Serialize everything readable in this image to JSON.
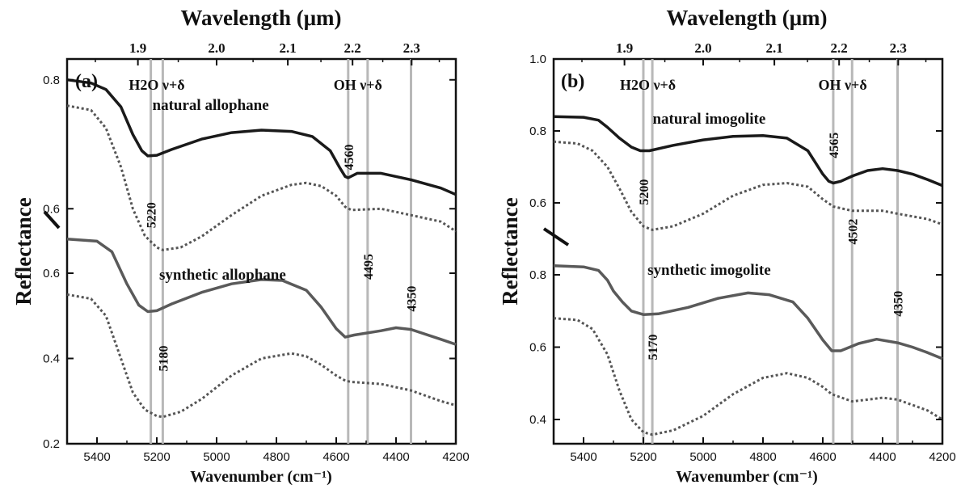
{
  "figure": {
    "top_axis_label": "Wavelength (μm)",
    "bottom_axis_label": "Wavenumber (cm⁻¹)",
    "y_axis_label": "Reflectance"
  },
  "chart_data": [
    {
      "type": "line",
      "panel_label": "(a)",
      "x_unit": "cm-1",
      "x_top_unit": "μm",
      "xlim": [
        5500,
        4200
      ],
      "x_ticks": [
        5400,
        5200,
        5000,
        4800,
        4600,
        4400,
        4200
      ],
      "x_top_ticks": [
        1.9,
        2.0,
        2.1,
        2.2,
        2.3
      ],
      "y_axis_break": true,
      "upper_segment": {
        "ylim": [
          0.5,
          0.9
        ],
        "ticks": [
          0.6,
          0.8
        ]
      },
      "lower_segment": {
        "ylim": [
          0.2,
          0.7
        ],
        "ticks": [
          0.2,
          0.4,
          0.6
        ]
      },
      "bands": [
        {
          "label": "H2O ν+δ",
          "lines": [
            5220,
            5180
          ]
        },
        {
          "label": "OH ν+δ",
          "lines": [
            4560,
            4495
          ]
        }
      ],
      "vertical_lines": [
        5220,
        5180,
        4560,
        4495,
        4350
      ],
      "line_labels": [
        {
          "text": "5220",
          "at": 5220,
          "segment": "upper",
          "y": 0.59
        },
        {
          "text": "5180",
          "at": 5180,
          "segment": "lower",
          "y": 0.4
        },
        {
          "text": "4560",
          "at": 4560,
          "segment": "upper",
          "y": 0.68
        },
        {
          "text": "4495",
          "at": 4495,
          "segment": "upper",
          "y": 0.51
        },
        {
          "text": "4350",
          "at": 4350,
          "segment": "lower",
          "y": 0.54
        }
      ],
      "annotations": [
        {
          "text": "natural allophane",
          "x": 5020,
          "segment": "upper",
          "y": 0.753
        },
        {
          "text": "synthetic allophane",
          "x": 4980,
          "segment": "lower",
          "y": 0.585
        }
      ],
      "series": [
        {
          "segment": "upper",
          "style": "solid",
          "color": "#1a1a1a",
          "x": [
            5500,
            5420,
            5370,
            5320,
            5280,
            5250,
            5230,
            5200,
            5150,
            5050,
            4950,
            4850,
            4750,
            4680,
            4620,
            4590,
            4570,
            4560,
            4530,
            4450,
            4350,
            4250,
            4200
          ],
          "y": [
            0.8,
            0.795,
            0.785,
            0.758,
            0.715,
            0.69,
            0.682,
            0.683,
            0.692,
            0.708,
            0.718,
            0.722,
            0.72,
            0.712,
            0.69,
            0.665,
            0.65,
            0.648,
            0.655,
            0.655,
            0.645,
            0.632,
            0.622
          ]
        },
        {
          "segment": "upper",
          "style": "dotted",
          "color": "#555555",
          "x": [
            5500,
            5420,
            5370,
            5320,
            5280,
            5240,
            5200,
            5180,
            5120,
            5050,
            4950,
            4850,
            4750,
            4700,
            4650,
            4600,
            4570,
            4550,
            4450,
            4350,
            4250,
            4200
          ],
          "y": [
            0.76,
            0.753,
            0.725,
            0.665,
            0.6,
            0.558,
            0.54,
            0.536,
            0.54,
            0.557,
            0.59,
            0.62,
            0.637,
            0.64,
            0.635,
            0.62,
            0.603,
            0.598,
            0.6,
            0.59,
            0.58,
            0.565
          ]
        },
        {
          "segment": "lower",
          "style": "solid",
          "color": "#5a5a5a",
          "x": [
            5500,
            5400,
            5350,
            5300,
            5260,
            5230,
            5200,
            5150,
            5050,
            4950,
            4850,
            4780,
            4700,
            4650,
            4600,
            4570,
            4540,
            4450,
            4400,
            4350,
            4250,
            4200
          ],
          "y": [
            0.68,
            0.675,
            0.65,
            0.575,
            0.525,
            0.51,
            0.512,
            0.528,
            0.555,
            0.575,
            0.585,
            0.583,
            0.56,
            0.52,
            0.47,
            0.45,
            0.455,
            0.465,
            0.472,
            0.468,
            0.445,
            0.433
          ]
        },
        {
          "segment": "lower",
          "style": "dotted",
          "color": "#555555",
          "x": [
            5500,
            5420,
            5370,
            5320,
            5280,
            5240,
            5200,
            5180,
            5120,
            5050,
            4950,
            4850,
            4750,
            4700,
            4650,
            4600,
            4570,
            4550,
            4450,
            4350,
            4250,
            4200
          ],
          "y": [
            0.55,
            0.54,
            0.5,
            0.4,
            0.32,
            0.28,
            0.265,
            0.263,
            0.275,
            0.305,
            0.36,
            0.4,
            0.412,
            0.405,
            0.385,
            0.36,
            0.348,
            0.345,
            0.34,
            0.325,
            0.3,
            0.29
          ]
        }
      ]
    },
    {
      "type": "line",
      "panel_label": "(b)",
      "x_unit": "cm-1",
      "x_top_unit": "μm",
      "xlim": [
        5500,
        4200
      ],
      "x_ticks": [
        5400,
        5200,
        5000,
        4800,
        4600,
        4400,
        4200
      ],
      "x_top_ticks": [
        1.9,
        2.0,
        2.1,
        2.2,
        2.3
      ],
      "y_axis_break": true,
      "upper_segment": {
        "ylim": [
          0.5,
          1.0
        ],
        "ticks": [
          0.6,
          0.8,
          1.0
        ]
      },
      "lower_segment": {
        "ylim": [
          0.3,
          0.9
        ],
        "ticks": [
          0.4,
          0.6,
          0.8
        ]
      },
      "bands": [
        {
          "label": "H2O ν+δ",
          "lines": [
            5200,
            5170
          ]
        },
        {
          "label": "OH ν+δ",
          "lines": [
            4565,
            4502
          ]
        }
      ],
      "vertical_lines": [
        5200,
        5170,
        4565,
        4502,
        4350
      ],
      "line_labels": [
        {
          "text": "5200",
          "at": 5200,
          "segment": "upper",
          "y": 0.63
        },
        {
          "text": "5170",
          "at": 5170,
          "segment": "lower",
          "y": 0.6
        },
        {
          "text": "4565",
          "at": 4565,
          "segment": "upper",
          "y": 0.76
        },
        {
          "text": "4502",
          "at": 4502,
          "segment": "upper",
          "y": 0.52
        },
        {
          "text": "4350",
          "at": 4350,
          "segment": "lower",
          "y": 0.72
        }
      ],
      "annotations": [
        {
          "text": "natural imogolite",
          "x": 4980,
          "segment": "upper",
          "y": 0.82
        },
        {
          "text": "synthetic imogolite",
          "x": 4980,
          "segment": "lower",
          "y": 0.8
        }
      ],
      "series": [
        {
          "segment": "upper",
          "style": "solid",
          "color": "#1a1a1a",
          "x": [
            5500,
            5400,
            5350,
            5320,
            5280,
            5240,
            5210,
            5180,
            5100,
            5000,
            4900,
            4800,
            4720,
            4650,
            4600,
            4580,
            4565,
            4540,
            4500,
            4450,
            4400,
            4350,
            4300,
            4250,
            4200
          ],
          "y": [
            0.84,
            0.838,
            0.83,
            0.81,
            0.78,
            0.755,
            0.745,
            0.745,
            0.76,
            0.775,
            0.785,
            0.787,
            0.78,
            0.745,
            0.68,
            0.66,
            0.655,
            0.66,
            0.675,
            0.69,
            0.695,
            0.69,
            0.68,
            0.665,
            0.648
          ]
        },
        {
          "segment": "upper",
          "style": "dotted",
          "color": "#555555",
          "x": [
            5500,
            5420,
            5370,
            5320,
            5280,
            5240,
            5200,
            5170,
            5100,
            5000,
            4900,
            4800,
            4720,
            4650,
            4600,
            4565,
            4502,
            4450,
            4400,
            4350,
            4250,
            4200
          ],
          "y": [
            0.77,
            0.765,
            0.745,
            0.7,
            0.64,
            0.575,
            0.535,
            0.525,
            0.535,
            0.57,
            0.62,
            0.65,
            0.655,
            0.645,
            0.61,
            0.59,
            0.578,
            0.578,
            0.578,
            0.57,
            0.555,
            0.54
          ]
        },
        {
          "segment": "lower",
          "style": "solid",
          "color": "#5a5a5a",
          "x": [
            5500,
            5400,
            5350,
            5320,
            5300,
            5270,
            5240,
            5200,
            5150,
            5050,
            4950,
            4850,
            4780,
            4700,
            4650,
            4600,
            4570,
            4540,
            4480,
            4420,
            4350,
            4300,
            4250,
            4200
          ],
          "y": [
            0.825,
            0.822,
            0.812,
            0.785,
            0.755,
            0.725,
            0.7,
            0.69,
            0.692,
            0.71,
            0.735,
            0.75,
            0.745,
            0.725,
            0.68,
            0.62,
            0.59,
            0.59,
            0.61,
            0.622,
            0.612,
            0.6,
            0.585,
            0.568
          ]
        },
        {
          "segment": "lower",
          "style": "dotted",
          "color": "#555555",
          "x": [
            5500,
            5420,
            5370,
            5320,
            5280,
            5240,
            5200,
            5170,
            5100,
            5000,
            4900,
            4800,
            4720,
            4650,
            4600,
            4570,
            4502,
            4450,
            4400,
            4350,
            4250,
            4200
          ],
          "y": [
            0.68,
            0.675,
            0.65,
            0.58,
            0.48,
            0.4,
            0.365,
            0.358,
            0.37,
            0.41,
            0.47,
            0.515,
            0.528,
            0.515,
            0.49,
            0.47,
            0.45,
            0.455,
            0.46,
            0.455,
            0.425,
            0.4
          ]
        }
      ]
    }
  ]
}
